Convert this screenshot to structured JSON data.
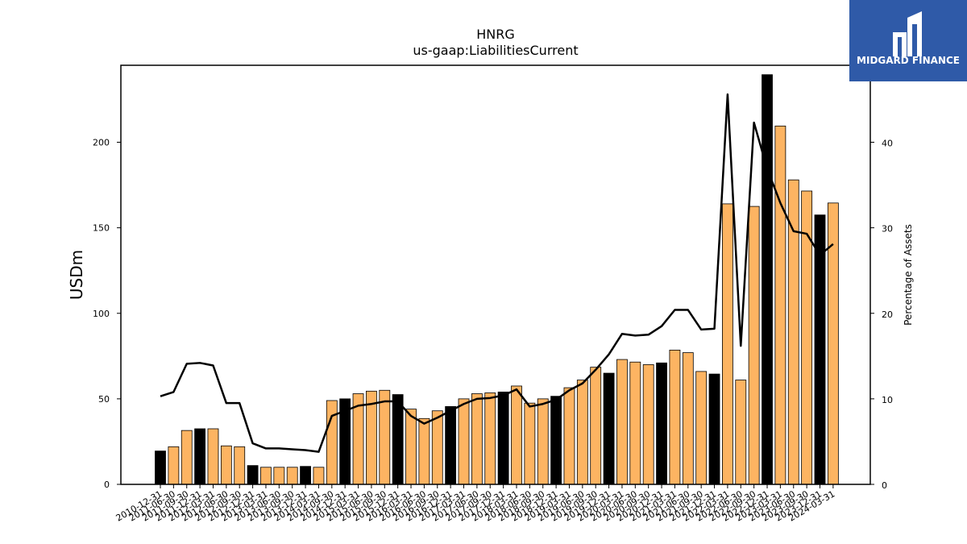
{
  "chart_data": {
    "type": "bar",
    "title": "HNRG",
    "subtitle": "us-gaap:LiabilitiesCurrent",
    "ylabel": "USDm",
    "y2label": "Percentage of Assets",
    "ylim": [
      0,
      245
    ],
    "y2lim": [
      0,
      49
    ],
    "yticks": [
      0,
      50,
      100,
      150,
      200
    ],
    "y2ticks": [
      0,
      10,
      20,
      30,
      40
    ],
    "categories": [
      "2010-12-31",
      "2011-06-30",
      "2011-09-30",
      "2011-12-31",
      "2012-03-31",
      "2012-06-30",
      "2012-09-30",
      "2012-12-31",
      "2013-03-31",
      "2013-06-30",
      "2013-09-30",
      "2013-12-31",
      "2014-03-31",
      "2014-09-30",
      "2014-12-31",
      "2015-03-31",
      "2015-06-30",
      "2015-09-30",
      "2015-12-31",
      "2016-03-31",
      "2016-06-30",
      "2016-09-30",
      "2016-12-31",
      "2017-03-31",
      "2017-06-30",
      "2017-09-30",
      "2017-12-31",
      "2018-03-31",
      "2018-06-30",
      "2018-09-30",
      "2018-12-31",
      "2019-03-31",
      "2019-06-30",
      "2019-09-30",
      "2019-12-31",
      "2020-03-31",
      "2020-06-30",
      "2020-09-30",
      "2020-12-31",
      "2021-03-31",
      "2021-06-30",
      "2021-09-30",
      "2021-12-31",
      "2022-03-31",
      "2022-06-30",
      "2022-09-30",
      "2022-12-31",
      "2023-03-31",
      "2023-06-30",
      "2023-09-30",
      "2023-12-31",
      "2024-03-31"
    ],
    "values": [
      19.5,
      22,
      31.5,
      32.5,
      32.5,
      22.5,
      22,
      11,
      10,
      10,
      10,
      10.5,
      10,
      49,
      50,
      53,
      54.5,
      55,
      52.5,
      44,
      38.5,
      43,
      45.5,
      50,
      53,
      53.5,
      54,
      57.5,
      47.5,
      50,
      51.5,
      56.5,
      61,
      68.5,
      65,
      73,
      71.5,
      70,
      71,
      78.5,
      77,
      66,
      64.5,
      164,
      61,
      162.5,
      239.5,
      209.5,
      178,
      171.5,
      157.5,
      164.5
    ],
    "fiscal_year_end": [
      true,
      false,
      false,
      true,
      false,
      false,
      false,
      true,
      false,
      false,
      false,
      true,
      false,
      false,
      true,
      false,
      false,
      false,
      true,
      false,
      false,
      false,
      true,
      false,
      false,
      false,
      true,
      false,
      false,
      false,
      true,
      false,
      false,
      false,
      true,
      false,
      false,
      false,
      true,
      false,
      false,
      false,
      true,
      false,
      false,
      false,
      true,
      false,
      false,
      false,
      true,
      false
    ],
    "line_series": {
      "name": "Percentage of Assets",
      "values": [
        10.3,
        10.8,
        14.1,
        14.2,
        13.9,
        9.5,
        9.5,
        4.8,
        4.2,
        4.2,
        4.1,
        4.0,
        3.8,
        8.0,
        8.6,
        9.2,
        9.4,
        9.7,
        9.7,
        8.0,
        7.1,
        7.8,
        8.6,
        9.4,
        10.0,
        10.1,
        10.4,
        11.1,
        9.1,
        9.4,
        9.9,
        11.0,
        11.8,
        13.4,
        15.2,
        17.6,
        17.4,
        17.5,
        18.5,
        20.4,
        20.4,
        18.1,
        18.2,
        45.6,
        16.2,
        42.3,
        36.9,
        32.9,
        29.6,
        29.3,
        26.8,
        28.1
      ],
      "color": "#000000"
    },
    "colors": {
      "bar": "#fdb462",
      "bar_fy": "#000000",
      "bar_edge": "#000000",
      "line": "#000000"
    },
    "grid": false,
    "legend": "none"
  },
  "logo": {
    "text": "MIDGARD FINANCE",
    "bg": "#2f5aa8"
  }
}
